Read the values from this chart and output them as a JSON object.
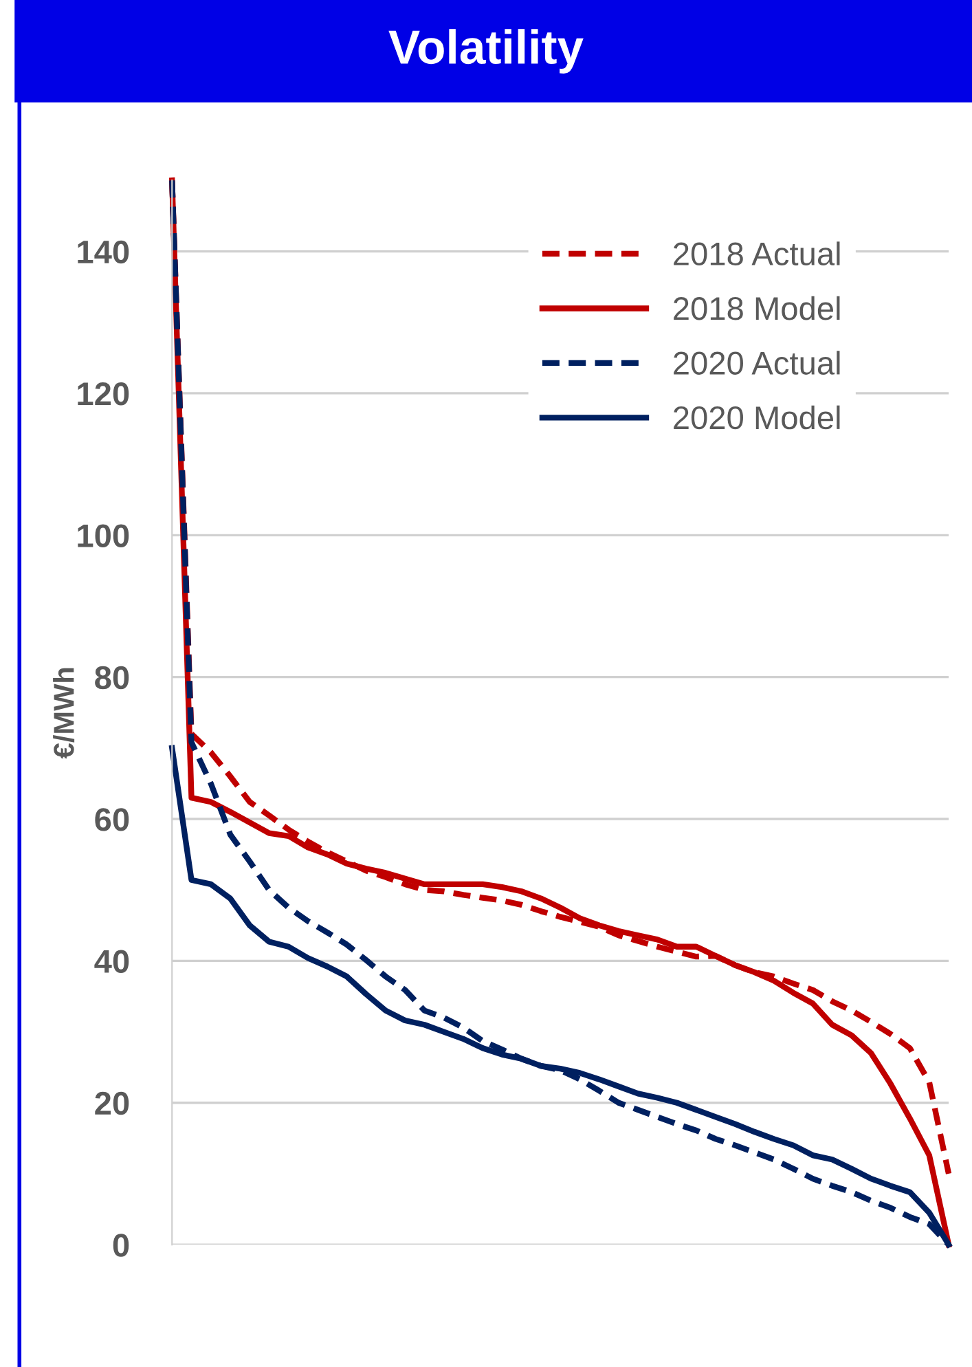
{
  "chart_data": {
    "type": "line",
    "title": "Volatility",
    "ylabel": "€/MWh",
    "categories": [
      null,
      null,
      null,
      null,
      null,
      null,
      null,
      null,
      null,
      null,
      null,
      null,
      null,
      null,
      null,
      null,
      null,
      null,
      null,
      null,
      null,
      null,
      null,
      null,
      null,
      null,
      null,
      null,
      null,
      null,
      null,
      null,
      null,
      null,
      null,
      null,
      null,
      null,
      null,
      null,
      null
    ],
    "series": [
      {
        "name": "2018 Actual",
        "color": "#c00000",
        "line_style": "dashed",
        "values": [
          150,
          72,
          69.4,
          66,
          62.4,
          60.5,
          58.5,
          56.8,
          55.3,
          54,
          52.7,
          51.8,
          50.8,
          50,
          49.8,
          49.3,
          48.9,
          48.5,
          47.9,
          47,
          46.2,
          45.5,
          44.8,
          43.6,
          42.8,
          42,
          41.3,
          40.6,
          40.7,
          39.4,
          38.4,
          37.8,
          36.8,
          35.9,
          34.3,
          33,
          31.4,
          29.7,
          27.7,
          22.9,
          10
        ]
      },
      {
        "name": "2018 Model",
        "color": "#c00000",
        "line_style": "solid",
        "values": [
          150,
          63,
          62.4,
          61,
          59.5,
          58,
          57.6,
          56,
          55,
          53.7,
          53,
          52.4,
          51.6,
          50.8,
          50.8,
          50.8,
          50.8,
          50.4,
          49.8,
          48.8,
          47.5,
          46,
          45,
          44.2,
          43.6,
          43,
          42,
          42,
          40.7,
          39.4,
          38.4,
          37.2,
          35.5,
          34,
          31,
          29.5,
          27,
          22.7,
          17.8,
          12.6,
          0
        ]
      },
      {
        "name": "2020 Actual",
        "color": "#002060",
        "line_style": "dashed",
        "values": [
          150,
          70.8,
          65,
          57.8,
          54,
          50,
          47.5,
          45.6,
          44,
          42.3,
          40.1,
          37.8,
          35.9,
          33,
          32,
          30.6,
          28.7,
          27.5,
          26.2,
          25.2,
          24.6,
          23.3,
          21.7,
          20,
          19,
          18,
          17,
          16.1,
          14.9,
          14,
          13,
          12,
          10.7,
          9.3,
          8.3,
          7.4,
          6.2,
          5.2,
          3.9,
          2.9,
          0
        ]
      },
      {
        "name": "2020 Model",
        "color": "#002060",
        "line_style": "solid",
        "values": [
          70,
          51.4,
          50.8,
          48.8,
          45,
          42.7,
          42,
          40.4,
          39.2,
          37.8,
          35.3,
          33,
          31.6,
          31,
          30,
          29,
          27.7,
          26.8,
          26.2,
          25.2,
          24.8,
          24.2,
          23.3,
          22.3,
          21.3,
          20.7,
          20,
          19,
          18,
          17,
          15.9,
          14.9,
          14,
          12.6,
          12,
          10.7,
          9.3,
          8.3,
          7.4,
          4.5,
          0
        ]
      }
    ],
    "ylim": [
      0,
      150
    ],
    "yticks": [
      0,
      20,
      40,
      60,
      80,
      100,
      120,
      140
    ],
    "grid": "y",
    "legend": "top right",
    "tick_labels": "y",
    "marker": "none"
  }
}
